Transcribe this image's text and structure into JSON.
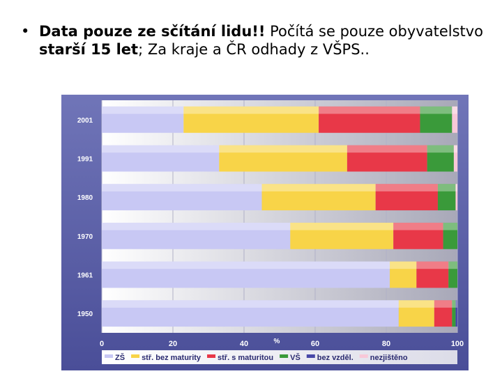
{
  "slide": {
    "bullet_symbol": "•",
    "text": {
      "part1_bold": "Data pouze ze sčítání lidu!!",
      "part2": " Počítá se pouze obyvatelstvo ",
      "part3_bold": "starší 15 let",
      "part4": "; Za kraje a ČR odhady z VŠPS.."
    }
  },
  "chart_data": {
    "type": "bar",
    "orientation": "horizontal",
    "stacked": true,
    "categories": [
      "2001",
      "1991",
      "1980",
      "1970",
      "1961",
      "1950"
    ],
    "series": [
      {
        "name": "ZŠ",
        "color": "#c8c8f4",
        "values": [
          23,
          33,
          45,
          53,
          81,
          83.5
        ]
      },
      {
        "name": "stř. bez maturity",
        "color": "#f8d448",
        "values": [
          38,
          36,
          32,
          29,
          7.5,
          10
        ]
      },
      {
        "name": "stř. s maturitou",
        "color": "#e83848",
        "values": [
          28.5,
          22.5,
          17.5,
          14,
          9,
          5
        ]
      },
      {
        "name": "VŠ",
        "color": "#3a9a3a",
        "values": [
          9,
          7.5,
          5,
          4,
          2.5,
          1
        ]
      },
      {
        "name": "bez vzděl.",
        "color": "#4848a8",
        "values": [
          0,
          0,
          0,
          0,
          0,
          0.5
        ]
      },
      {
        "name": "nezjištěno",
        "color": "#f8c8d8",
        "values": [
          1.5,
          1,
          0.5,
          0,
          0,
          0
        ]
      }
    ],
    "xlim": [
      0,
      100
    ],
    "xticks": [
      0,
      20,
      40,
      60,
      80,
      100
    ],
    "xlabel": "%",
    "grid": true,
    "legend_position": "bottom",
    "background_color": "#5b5fa8"
  }
}
